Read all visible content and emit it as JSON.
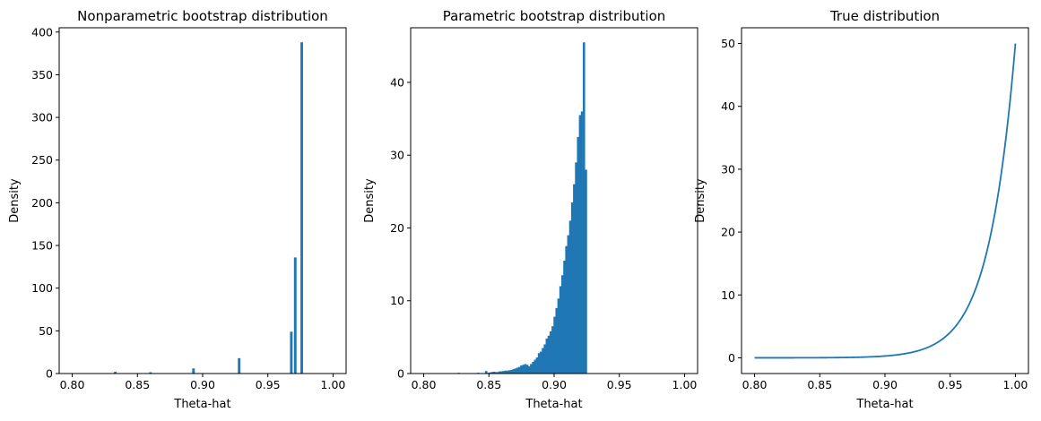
{
  "chart_data": [
    {
      "type": "bar",
      "title": "Nonparametric bootstrap distribution",
      "xlabel": "Theta-hat",
      "ylabel": "Density",
      "xlim": [
        0.79,
        1.01
      ],
      "ylim": [
        0,
        405
      ],
      "xticks": [
        0.8,
        0.85,
        0.9,
        0.95,
        1.0
      ],
      "xtick_labels": [
        "0.80",
        "0.85",
        "0.90",
        "0.95",
        "1.00"
      ],
      "yticks": [
        0,
        50,
        100,
        150,
        200,
        250,
        300,
        350,
        400
      ],
      "ytick_labels": [
        "0",
        "50",
        "100",
        "150",
        "200",
        "250",
        "300",
        "350",
        "400"
      ],
      "bin_width": 0.002,
      "color": "#1f77b4",
      "bars": [
        {
          "x": 0.832,
          "value": 2
        },
        {
          "x": 0.859,
          "value": 1.5
        },
        {
          "x": 0.892,
          "value": 6
        },
        {
          "x": 0.927,
          "value": 18
        },
        {
          "x": 0.967,
          "value": 49
        },
        {
          "x": 0.97,
          "value": 136
        },
        {
          "x": 0.975,
          "value": 388
        }
      ]
    },
    {
      "type": "bar",
      "title": "Parametric bootstrap distribution",
      "xlabel": "Theta-hat",
      "ylabel": "Density",
      "xlim": [
        0.79,
        1.01
      ],
      "ylim": [
        0,
        47.5
      ],
      "xticks": [
        0.8,
        0.85,
        0.9,
        0.95,
        1.0
      ],
      "xtick_labels": [
        "0.80",
        "0.85",
        "0.90",
        "0.95",
        "1.00"
      ],
      "yticks": [
        0,
        10,
        20,
        30,
        40
      ],
      "ytick_labels": [
        "0",
        "10",
        "20",
        "30",
        "40"
      ],
      "bin_start": 0.826,
      "bin_width": 0.0015,
      "color": "#1f77b4",
      "values": [
        0.1,
        0,
        0,
        0,
        0,
        0,
        0,
        0,
        0,
        0,
        0.1,
        0.05,
        0.05,
        0.05,
        0.35,
        0.1,
        0.15,
        0.2,
        0.25,
        0.2,
        0.2,
        0.3,
        0.3,
        0.35,
        0.4,
        0.4,
        0.45,
        0.5,
        0.6,
        0.7,
        0.8,
        0.9,
        1.1,
        1.2,
        1.3,
        1.2,
        1.0,
        1.3,
        1.6,
        1.9,
        2.2,
        2.8,
        3.0,
        3.5,
        4.0,
        4.8,
        5.2,
        5.8,
        6.5,
        7.8,
        9.0,
        10.3,
        12.0,
        13.5,
        15.5,
        17.5,
        19.0,
        21.0,
        23.5,
        26.0,
        29.0,
        32.5,
        35.5,
        36.0,
        45.5,
        28.0
      ]
    },
    {
      "type": "line",
      "title": "True distribution",
      "xlabel": "Theta-hat",
      "ylabel": "Density",
      "xlim": [
        0.79,
        1.01
      ],
      "ylim": [
        -2.5,
        52.5
      ],
      "xticks": [
        0.8,
        0.85,
        0.9,
        0.95,
        1.0
      ],
      "xtick_labels": [
        "0.80",
        "0.85",
        "0.90",
        "0.95",
        "1.00"
      ],
      "yticks": [
        0,
        10,
        20,
        30,
        40,
        50
      ],
      "ytick_labels": [
        "0",
        "10",
        "20",
        "30",
        "40",
        "50"
      ],
      "color": "#1f77b4",
      "function": "50 * x^49",
      "x_range": [
        0.8,
        1.0
      ]
    }
  ]
}
